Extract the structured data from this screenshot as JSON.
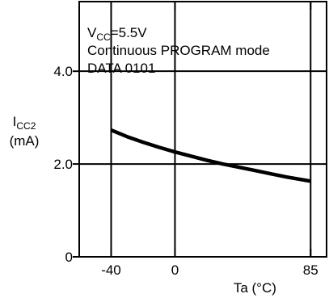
{
  "chart_data": {
    "type": "line",
    "xlabel": "Ta (°C)",
    "ylabel": {
      "main": "I",
      "sub": "CC2",
      "unit": "(mA)"
    },
    "xlim": [
      -60,
      95
    ],
    "ylim": [
      0,
      5.5
    ],
    "x_ticks": [
      -40,
      0,
      85
    ],
    "x_tick_labels": [
      "-40",
      "0",
      "85"
    ],
    "y_ticks": [
      0,
      2.0,
      4.0
    ],
    "y_tick_labels": [
      "0",
      "2.0",
      "4.0"
    ],
    "grid": true,
    "annotations": [
      {
        "main": "V",
        "sub": "CC",
        "rest": "=5.5V"
      },
      {
        "text": "Continuous PROGRAM mode"
      },
      {
        "text": "DATA  0101"
      }
    ],
    "series": [
      {
        "x": [
          -40,
          -30,
          -20,
          -10,
          0,
          10,
          20,
          30,
          40,
          50,
          60,
          70,
          85
        ],
        "y": [
          2.73,
          2.59,
          2.47,
          2.36,
          2.26,
          2.17,
          2.08,
          2.0,
          1.93,
          1.86,
          1.79,
          1.72,
          1.63
        ]
      }
    ]
  }
}
